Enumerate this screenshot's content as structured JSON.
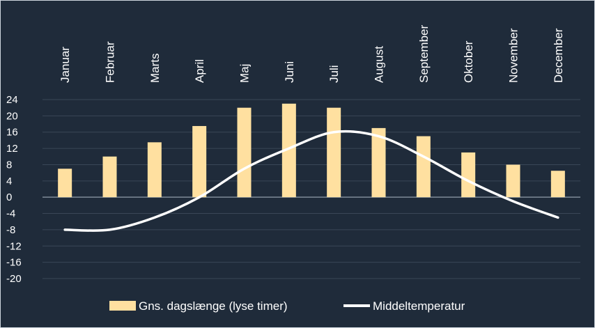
{
  "chart_data": {
    "type": "bar+line",
    "categories": [
      "Januar",
      "Februar",
      "Marts",
      "April",
      "Maj",
      "Juni",
      "Juli",
      "August",
      "September",
      "Oktober",
      "November",
      "December"
    ],
    "series": [
      {
        "name": "Gns. dagslænge (lyse timer)",
        "type": "bar",
        "color": "#ffe0a0",
        "values": [
          7,
          10,
          13.5,
          17.5,
          22,
          23,
          22,
          17,
          15,
          11,
          8,
          6.5
        ]
      },
      {
        "name": "Middeltemperatur",
        "type": "line",
        "color": "#ffffff",
        "values": [
          -8,
          -8,
          -5,
          0,
          7,
          12,
          16,
          15,
          10,
          4,
          -1,
          -5
        ]
      }
    ],
    "yticks": [
      24,
      20,
      16,
      12,
      8,
      4,
      0,
      -4,
      -8,
      -12,
      -16,
      -20
    ],
    "ylim": [
      -20,
      24
    ],
    "xlabel": "",
    "ylabel": "",
    "legend_position": "bottom",
    "grid": true
  }
}
